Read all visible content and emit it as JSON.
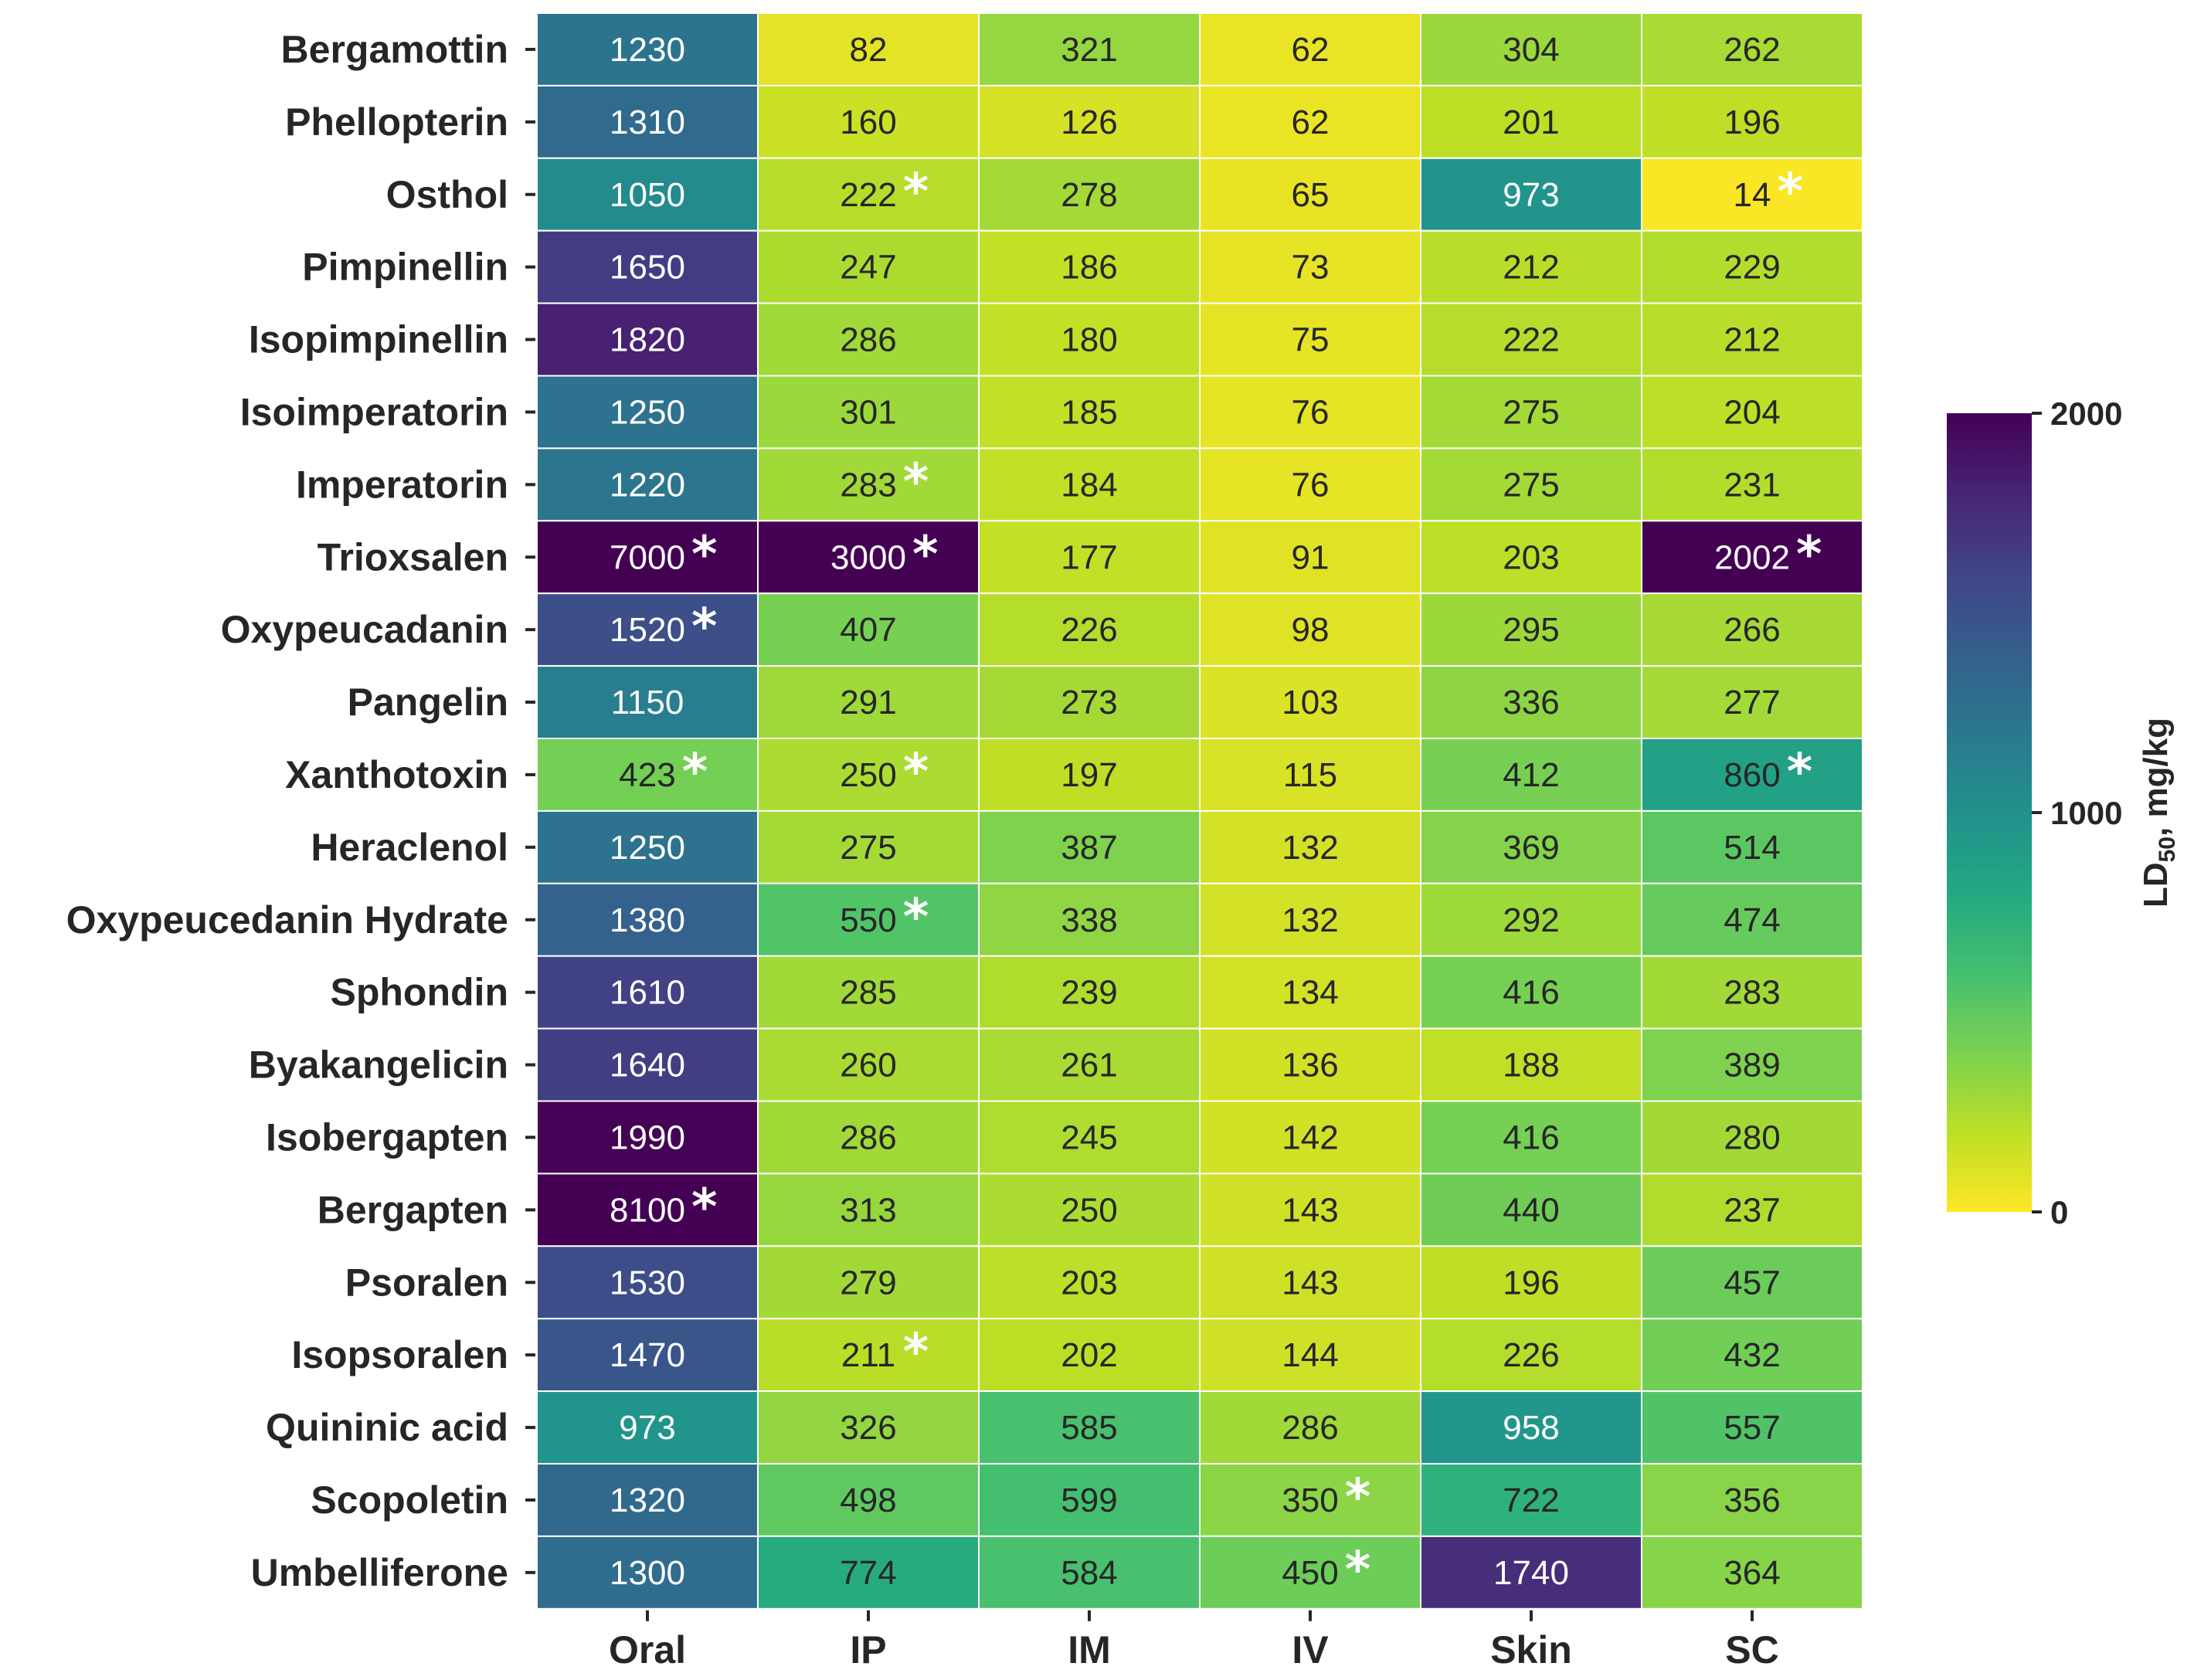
{
  "chart_data": {
    "type": "heatmap",
    "title": "",
    "xlabel": "",
    "ylabel": "",
    "columns": [
      "Oral",
      "IP",
      "IM",
      "IV",
      "Skin",
      "SC"
    ],
    "rows": [
      "Bergamottin",
      "Phellopterin",
      "Osthol",
      "Pimpinellin",
      "Isopimpinellin",
      "Isoimperatorin",
      "Imperatorin",
      "Trioxsalen",
      "Oxypeucadanin",
      "Pangelin",
      "Xanthotoxin",
      "Heraclenol",
      "Oxypeucedanin Hydrate",
      "Sphondin",
      "Byakangelicin",
      "Isobergapten",
      "Bergapten",
      "Psoralen",
      "Isopsoralen",
      "Quininic acid",
      "Scopoletin",
      "Umbelliferone"
    ],
    "values": [
      [
        1230,
        82,
        321,
        62,
        304,
        262
      ],
      [
        1310,
        160,
        126,
        62,
        201,
        196
      ],
      [
        1050,
        222,
        278,
        65,
        973,
        14
      ],
      [
        1650,
        247,
        186,
        73,
        212,
        229
      ],
      [
        1820,
        286,
        180,
        75,
        222,
        212
      ],
      [
        1250,
        301,
        185,
        76,
        275,
        204
      ],
      [
        1220,
        283,
        184,
        76,
        275,
        231
      ],
      [
        7000,
        3000,
        177,
        91,
        203,
        2002
      ],
      [
        1520,
        407,
        226,
        98,
        295,
        266
      ],
      [
        1150,
        291,
        273,
        103,
        336,
        277
      ],
      [
        423,
        250,
        197,
        115,
        412,
        860
      ],
      [
        1250,
        275,
        387,
        132,
        369,
        514
      ],
      [
        1380,
        550,
        338,
        132,
        292,
        474
      ],
      [
        1610,
        285,
        239,
        134,
        416,
        283
      ],
      [
        1640,
        260,
        261,
        136,
        188,
        389
      ],
      [
        1990,
        286,
        245,
        142,
        416,
        280
      ],
      [
        8100,
        313,
        250,
        143,
        440,
        237
      ],
      [
        1530,
        279,
        203,
        143,
        196,
        457
      ],
      [
        1470,
        211,
        202,
        144,
        226,
        432
      ],
      [
        973,
        326,
        585,
        286,
        958,
        557
      ],
      [
        1320,
        498,
        599,
        350,
        722,
        356
      ],
      [
        1300,
        774,
        584,
        450,
        1740,
        364
      ]
    ],
    "starred": [
      [
        false,
        false,
        false,
        false,
        false,
        false
      ],
      [
        false,
        false,
        false,
        false,
        false,
        false
      ],
      [
        false,
        true,
        false,
        false,
        false,
        true
      ],
      [
        false,
        false,
        false,
        false,
        false,
        false
      ],
      [
        false,
        false,
        false,
        false,
        false,
        false
      ],
      [
        false,
        false,
        false,
        false,
        false,
        false
      ],
      [
        false,
        true,
        false,
        false,
        false,
        false
      ],
      [
        true,
        true,
        false,
        false,
        false,
        true
      ],
      [
        true,
        false,
        false,
        false,
        false,
        false
      ],
      [
        false,
        false,
        false,
        false,
        false,
        false
      ],
      [
        true,
        true,
        false,
        false,
        false,
        true
      ],
      [
        false,
        false,
        false,
        false,
        false,
        false
      ],
      [
        false,
        true,
        false,
        false,
        false,
        false
      ],
      [
        false,
        false,
        false,
        false,
        false,
        false
      ],
      [
        false,
        false,
        false,
        false,
        false,
        false
      ],
      [
        false,
        false,
        false,
        false,
        false,
        false
      ],
      [
        true,
        false,
        false,
        false,
        false,
        false
      ],
      [
        false,
        false,
        false,
        false,
        false,
        false
      ],
      [
        false,
        true,
        false,
        false,
        false,
        false
      ],
      [
        false,
        false,
        false,
        false,
        false,
        false
      ],
      [
        false,
        false,
        false,
        true,
        false,
        false
      ],
      [
        false,
        false,
        false,
        true,
        false,
        false
      ]
    ],
    "star_symbol": "*",
    "colormap": "viridis_r",
    "vmin": 0,
    "vmax": 2000,
    "colorbar": {
      "label_main": "LD",
      "label_sub": "50",
      "label_tail": ", mg/kg",
      "ticks": [
        0,
        1000,
        2000
      ],
      "tick_labels": [
        "0",
        "1000",
        "2000"
      ],
      "placement": "right"
    }
  }
}
